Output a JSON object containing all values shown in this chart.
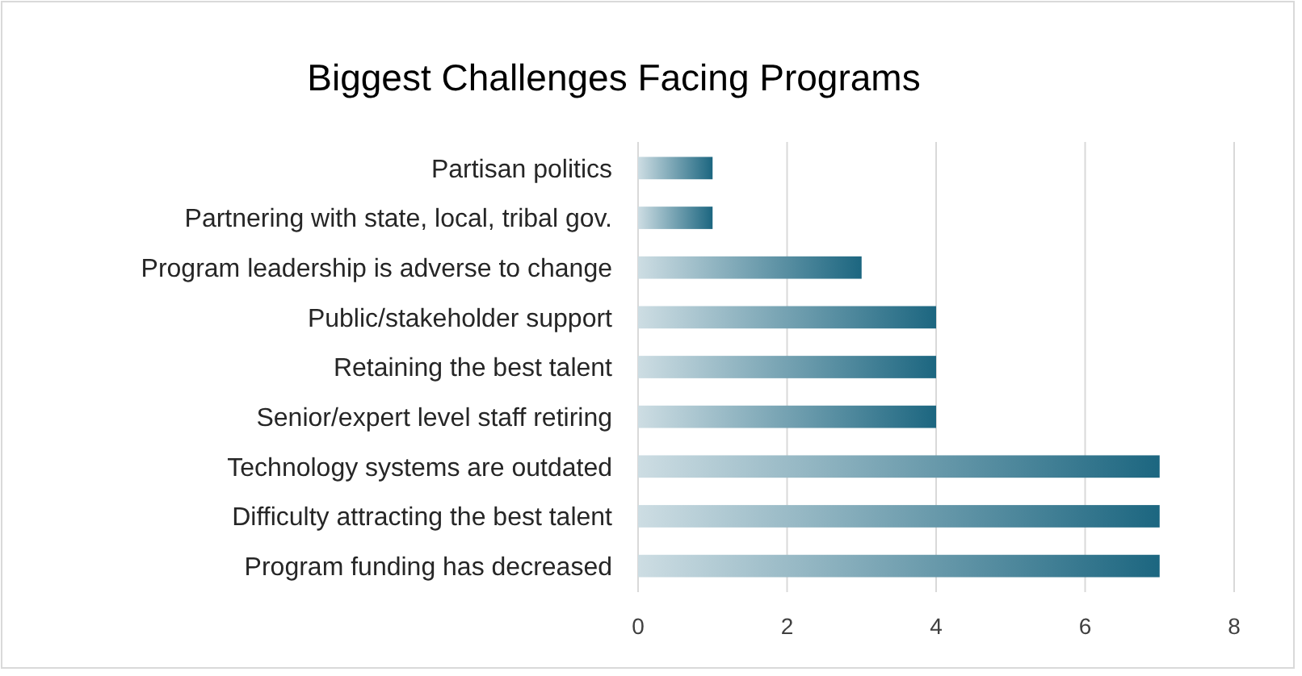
{
  "chart_data": {
    "type": "bar",
    "orientation": "horizontal",
    "title": "Biggest Challenges  Facing Programs",
    "categories": [
      "Partisan politics",
      "Partnering with state, local, tribal gov.",
      "Program leadership is adverse to change",
      "Public/stakeholder support",
      "Retaining the best talent",
      "Senior/expert level staff retiring",
      "Technology systems are outdated",
      "Difficulty attracting the best talent",
      "Program funding has decreased"
    ],
    "values": [
      1,
      1,
      3,
      4,
      4,
      4,
      7,
      7,
      7
    ],
    "color": "#1c6680",
    "xlim": [
      0,
      8
    ],
    "xticks": [
      0,
      2,
      4,
      6,
      8
    ],
    "grid": "x"
  }
}
